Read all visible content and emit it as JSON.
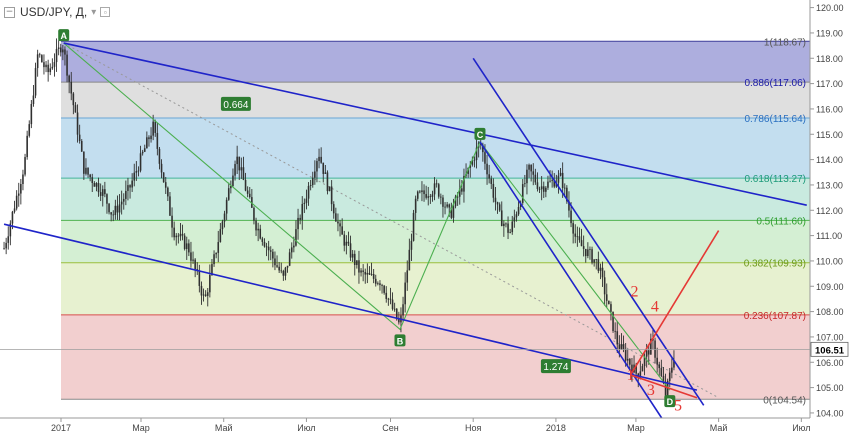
{
  "header": {
    "symbol": "USD/JPY, Д,",
    "collapse_icon": "minus-icon",
    "dropdown_icon": "triangle-down-icon",
    "settings_icon": "square-icon"
  },
  "colors": {
    "candle": "#303030",
    "channel": "#1f24c9",
    "green_path": "#4caf50",
    "red": "#e53935",
    "price_label_bg": "#ffffff"
  },
  "chart_data": {
    "type": "candlestick",
    "title": "USD/JPY, Д,",
    "y_axis": {
      "min": 103.8,
      "max": 120.3,
      "ticks": [
        "104.00",
        "105.00",
        "106.00",
        "107.00",
        "108.00",
        "109.00",
        "110.00",
        "111.00",
        "112.00",
        "113.00",
        "114.00",
        "115.00",
        "116.00",
        "117.00",
        "118.00",
        "119.00",
        "120.00"
      ]
    },
    "x_axis": {
      "labels": [
        {
          "label": "2017",
          "date": "2017-01-01"
        },
        {
          "label": "Мар",
          "date": "2017-03-01"
        },
        {
          "label": "Май",
          "date": "2017-05-01"
        },
        {
          "label": "Июл",
          "date": "2017-07-01"
        },
        {
          "label": "Сен",
          "date": "2017-09-01"
        },
        {
          "label": "Ноя",
          "date": "2017-11-01"
        },
        {
          "label": "2018",
          "date": "2018-01-01"
        },
        {
          "label": "Мар",
          "date": "2018-03-01"
        },
        {
          "label": "Май",
          "date": "2018-05-01"
        },
        {
          "label": "Июл",
          "date": "2018-07-01"
        }
      ]
    },
    "last_price": "106.51",
    "price_path": [
      [
        "2016-11-20",
        110.5
      ],
      [
        "2016-12-05",
        113.8
      ],
      [
        "2016-12-15",
        118.2
      ],
      [
        "2016-12-22",
        117.4
      ],
      [
        "2017-01-02",
        118.6
      ],
      [
        "2017-01-10",
        116.2
      ],
      [
        "2017-01-18",
        113.6
      ],
      [
        "2017-02-01",
        112.7
      ],
      [
        "2017-02-08",
        111.8
      ],
      [
        "2017-02-20",
        112.8
      ],
      [
        "2017-03-10",
        115.3
      ],
      [
        "2017-03-25",
        111.2
      ],
      [
        "2017-04-05",
        110.5
      ],
      [
        "2017-04-17",
        108.4
      ],
      [
        "2017-05-01",
        111.8
      ],
      [
        "2017-05-10",
        114.2
      ],
      [
        "2017-05-25",
        111.4
      ],
      [
        "2017-06-14",
        109.3
      ],
      [
        "2017-06-25",
        111.5
      ],
      [
        "2017-07-10",
        114.3
      ],
      [
        "2017-07-26",
        111.1
      ],
      [
        "2017-08-10",
        109.5
      ],
      [
        "2017-08-25",
        109.2
      ],
      [
        "2017-09-08",
        107.4
      ],
      [
        "2017-09-20",
        112.5
      ],
      [
        "2017-10-05",
        112.9
      ],
      [
        "2017-10-15",
        111.8
      ],
      [
        "2017-11-06",
        114.7
      ],
      [
        "2017-11-20",
        111.8
      ],
      [
        "2017-11-28",
        111.1
      ],
      [
        "2017-12-12",
        113.6
      ],
      [
        "2017-12-20",
        112.9
      ],
      [
        "2018-01-05",
        113.3
      ],
      [
        "2018-01-16",
        110.8
      ],
      [
        "2018-02-01",
        109.9
      ],
      [
        "2018-02-15",
        106.8
      ],
      [
        "2018-03-02",
        105.5
      ],
      [
        "2018-03-13",
        106.8
      ],
      [
        "2018-03-23",
        104.7
      ],
      [
        "2018-03-30",
        106.5
      ]
    ],
    "fibonacci_levels": [
      {
        "ratio": "1",
        "price": 118.67,
        "label": "1(118.67)",
        "fill": "#9fa0d8",
        "text_color": "#555555"
      },
      {
        "ratio": "0.886",
        "price": 117.06,
        "label": "0.886(117.06)",
        "fill": "#d9d9d9",
        "text_color": "#1a1aa6"
      },
      {
        "ratio": "0.786",
        "price": 115.64,
        "label": "0.786(115.64)",
        "fill": "#b9d8ec",
        "text_color": "#2a6fc0"
      },
      {
        "ratio": "0.618",
        "price": 113.27,
        "label": "0.618(113.27)",
        "fill": "#bfe6d9",
        "text_color": "#1c9a7a"
      },
      {
        "ratio": "0.5",
        "price": 111.6,
        "label": "0.5(111.60)",
        "fill": "#cdeccb",
        "text_color": "#2e9e2e"
      },
      {
        "ratio": "0.382",
        "price": 109.93,
        "label": "0.382(109.93)",
        "fill": "#e3efc8",
        "text_color": "#6d9a1a"
      },
      {
        "ratio": "0.236",
        "price": 107.87,
        "label": "0.236(107.87)",
        "fill": "#f0c7c7",
        "text_color": "#c62828"
      },
      {
        "ratio": "0",
        "price": 104.54,
        "label": "0(104.54)",
        "fill": "#ffffff",
        "text_color": "#555555"
      }
    ],
    "fib_line_colors": [
      "#3f3f9a",
      "#888888",
      "#6aa5d6",
      "#46b39a",
      "#4fb34f",
      "#9bbf3c",
      "#d94c4c",
      "#888888"
    ],
    "abcd_points": [
      {
        "label": "A",
        "date": "2017-01-03",
        "price": 118.6
      },
      {
        "label": "B",
        "date": "2017-09-08",
        "price": 107.3
      },
      {
        "label": "C",
        "date": "2017-11-06",
        "price": 114.7
      },
      {
        "label": "D",
        "date": "2018-03-26",
        "price": 104.9
      }
    ],
    "ratio_labels": [
      {
        "label": "0.664",
        "date": "2017-05-10",
        "price": 116.2
      },
      {
        "label": "1.274",
        "date": "2018-01-01",
        "price": 105.85
      }
    ],
    "wave_labels": [
      {
        "label": "1",
        "date": "2018-02-25",
        "price": 105.3
      },
      {
        "label": "2",
        "date": "2018-02-28",
        "price": 108.6
      },
      {
        "label": "3",
        "date": "2018-03-12",
        "price": 104.7
      },
      {
        "label": "4",
        "date": "2018-03-15",
        "price": 108.0
      },
      {
        "label": "5",
        "date": "2018-04-01",
        "price": 104.1
      }
    ],
    "trendlines": [
      {
        "role": "upper-channel",
        "from": [
          "2017-01-03",
          118.6
        ],
        "to": [
          "2018-07-05",
          112.2
        ]
      },
      {
        "role": "lower-channel",
        "from": [
          "2016-11-20",
          111.45
        ],
        "to": [
          "2018-04-15",
          104.9
        ]
      },
      {
        "role": "steep-upper",
        "from": [
          "2017-11-01",
          118.0
        ],
        "to": [
          "2018-04-20",
          104.3
        ]
      },
      {
        "role": "steep-lower",
        "from": [
          "2017-11-06",
          114.7
        ],
        "to": [
          "2018-03-20",
          103.8
        ]
      },
      {
        "role": "dotted-diagonal",
        "from": [
          "2017-01-03",
          118.6
        ],
        "to": [
          "2018-05-01",
          104.6
        ]
      }
    ],
    "red_lines": [
      {
        "from": [
          "2018-02-25",
          105.5
        ],
        "to": [
          "2018-05-01",
          111.2
        ]
      },
      {
        "from": [
          "2018-02-25",
          105.5
        ],
        "to": [
          "2018-04-15",
          104.6
        ]
      }
    ],
    "grid": false,
    "legend": "none"
  }
}
